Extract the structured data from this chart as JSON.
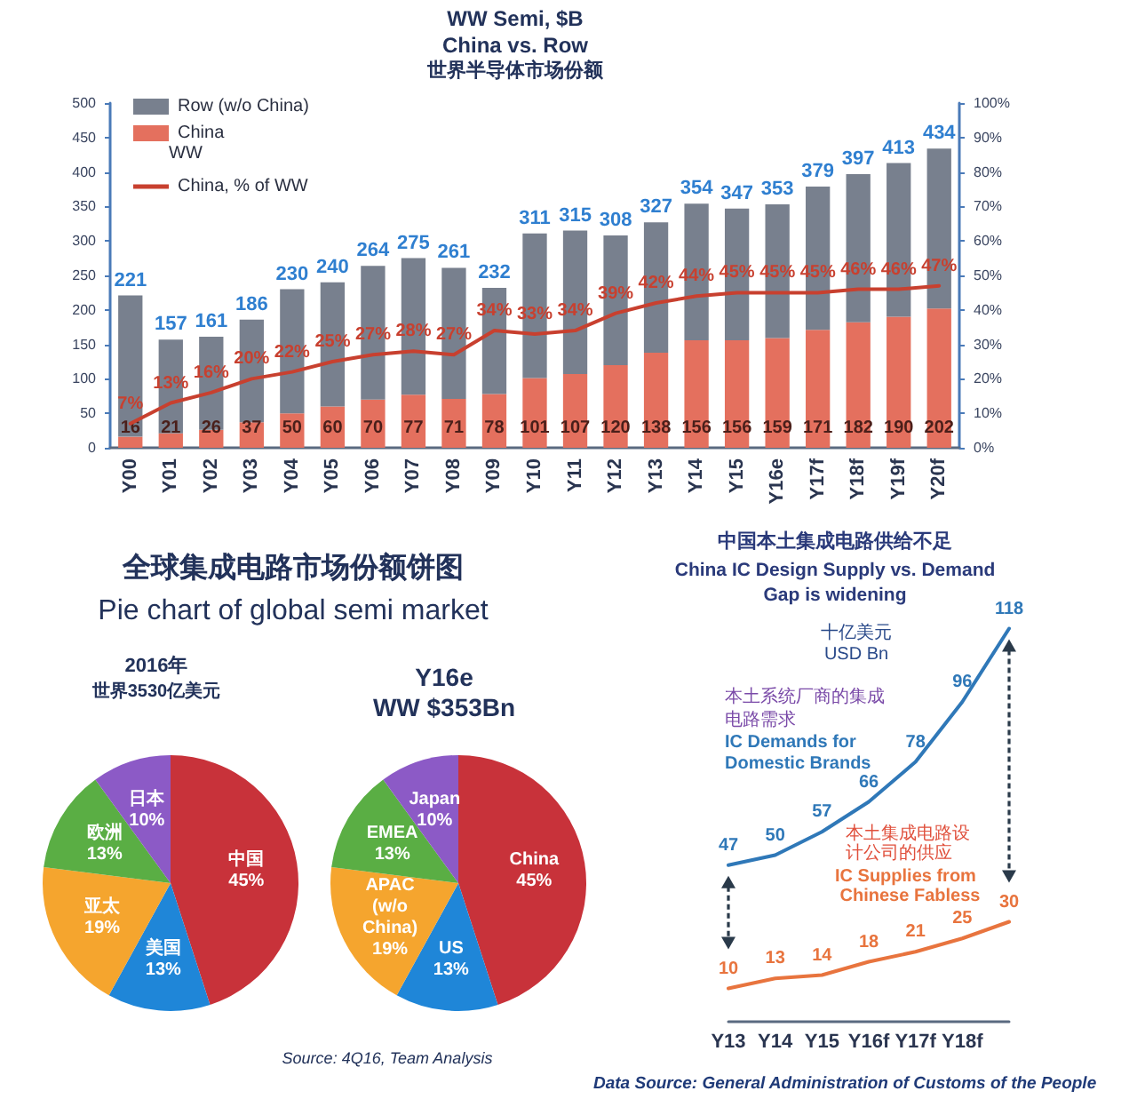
{
  "chart_data": [
    {
      "type": "bar",
      "title": "WW Semi, $B",
      "subtitle": "China vs. Row",
      "annotations": [
        "世界半导体市场份额",
        "WW"
      ],
      "categories": [
        "Y00",
        "Y01",
        "Y02",
        "Y03",
        "Y04",
        "Y05",
        "Y06",
        "Y07",
        "Y08",
        "Y09",
        "Y10",
        "Y11",
        "Y12",
        "Y13",
        "Y14",
        "Y15",
        "Y16e",
        "Y17f",
        "Y18f",
        "Y19f",
        "Y20f"
      ],
      "stacked": true,
      "series": [
        {
          "name": "China",
          "color": "#e4705e",
          "values": [
            16,
            21,
            26,
            37,
            50,
            60,
            70,
            77,
            71,
            78,
            101,
            107,
            120,
            138,
            156,
            156,
            159,
            171,
            182,
            190,
            202
          ],
          "value_labels": [
            "16",
            "21",
            "26",
            "37",
            "50",
            "60",
            "70",
            "77",
            "71",
            "78",
            "101",
            "107",
            "120",
            "138",
            "156",
            "156",
            "159",
            "171",
            "182",
            "190",
            "202"
          ]
        },
        {
          "name": "Row (w/o China)",
          "color": "#78808e",
          "values": [
            205,
            136,
            135,
            149,
            180,
            180,
            194,
            198,
            190,
            154,
            210,
            208,
            188,
            189,
            198,
            191,
            194,
            208,
            215,
            223,
            232
          ]
        },
        {
          "name": "China, % of WW",
          "type": "line",
          "axis": "y2",
          "marker": "none",
          "color": "#c8402f",
          "values": [
            7,
            13,
            16,
            20,
            22,
            25,
            27,
            28,
            27,
            34,
            33,
            34,
            39,
            42,
            44,
            45,
            45,
            45,
            46,
            46,
            47
          ],
          "value_labels": [
            "7%",
            "13%",
            "16%",
            "20%",
            "22%",
            "25%",
            "27%",
            "28%",
            "27%",
            "34%",
            "33%",
            "34%",
            "39%",
            "42%",
            "44%",
            "45%",
            "45%",
            "45%",
            "46%",
            "46%",
            "47%"
          ]
        }
      ],
      "totals": [
        "221",
        "157",
        "161",
        "186",
        "230",
        "240",
        "264",
        "275",
        "261",
        "232",
        "311",
        "315",
        "308",
        "327",
        "354",
        "347",
        "353",
        "379",
        "397",
        "413",
        "434"
      ],
      "ylim": [
        0,
        500
      ],
      "yticks": [
        0,
        50,
        100,
        150,
        200,
        250,
        300,
        350,
        400,
        450,
        500
      ],
      "y2lim": [
        0,
        100
      ],
      "y2ticks": [
        {
          "value": 0,
          "label": "0%"
        },
        {
          "value": 10,
          "label": "10%"
        },
        {
          "value": 20,
          "label": "20%"
        },
        {
          "value": 30,
          "label": "30%"
        },
        {
          "value": 40,
          "label": "40%"
        },
        {
          "value": 50,
          "label": "50%"
        },
        {
          "value": 60,
          "label": "60%"
        },
        {
          "value": 70,
          "label": "70%"
        },
        {
          "value": 80,
          "label": "80%"
        },
        {
          "value": 90,
          "label": "90%"
        },
        {
          "value": 100,
          "label": "100%"
        }
      ],
      "legend": "top left"
    },
    {
      "type": "pie",
      "title": "2016年",
      "subtitle": "世界3530亿美元",
      "annotations": [
        "全球集成电路市场份额饼图",
        "Pie chart of global semi market"
      ],
      "categories": [
        "中国",
        "美国",
        "亚太",
        "欧洲",
        "日本"
      ],
      "values": [
        45,
        13,
        19,
        13,
        10
      ],
      "value_labels": [
        "45%",
        "13%",
        "19%",
        "13%",
        "10%"
      ],
      "colors": [
        "#c8323a",
        "#1f86d8",
        "#f5a52e",
        "#5aae44",
        "#8c5ac6"
      ]
    },
    {
      "type": "pie",
      "title": "Y16e",
      "subtitle": "WW $353Bn",
      "annotations": [
        "Source: 4Q16, Team Analysis"
      ],
      "categories": [
        "China",
        "US",
        "APAC (w/o China)",
        "EMEA",
        "Japan"
      ],
      "values": [
        45,
        13,
        19,
        13,
        10
      ],
      "value_labels": [
        "45%",
        "13%",
        "19%",
        "13%",
        "10%"
      ],
      "colors": [
        "#c8323a",
        "#1f86d8",
        "#f5a52e",
        "#5aae44",
        "#8c5ac6"
      ]
    },
    {
      "type": "line",
      "title": "中国本土集成电路供给不足",
      "subtitle": "China IC Design Supply vs. Demand\nGap is widening",
      "annotations": [
        "十亿美元",
        "USD Bn",
        "本土系统厂商的集成电路需求",
        "本土集成电路设计公司的供应",
        "Data Source: General Administration of Customs of the People"
      ],
      "categories": [
        "Y13",
        "Y14",
        "Y15",
        "Y16f",
        "Y17f",
        "Y18f",
        null
      ],
      "series": [
        {
          "name": "IC Demands for Domestic Brands",
          "color": "#2f78b8",
          "values": [
            47,
            50,
            57,
            66,
            78,
            96,
            118
          ]
        },
        {
          "name": "IC Supplies from Chinese Fabless",
          "color": "#e8743e",
          "values": [
            10,
            13,
            14,
            18,
            21,
            25,
            30
          ]
        }
      ],
      "data_labels": true,
      "marker": "none",
      "tick_labels": "x"
    }
  ]
}
